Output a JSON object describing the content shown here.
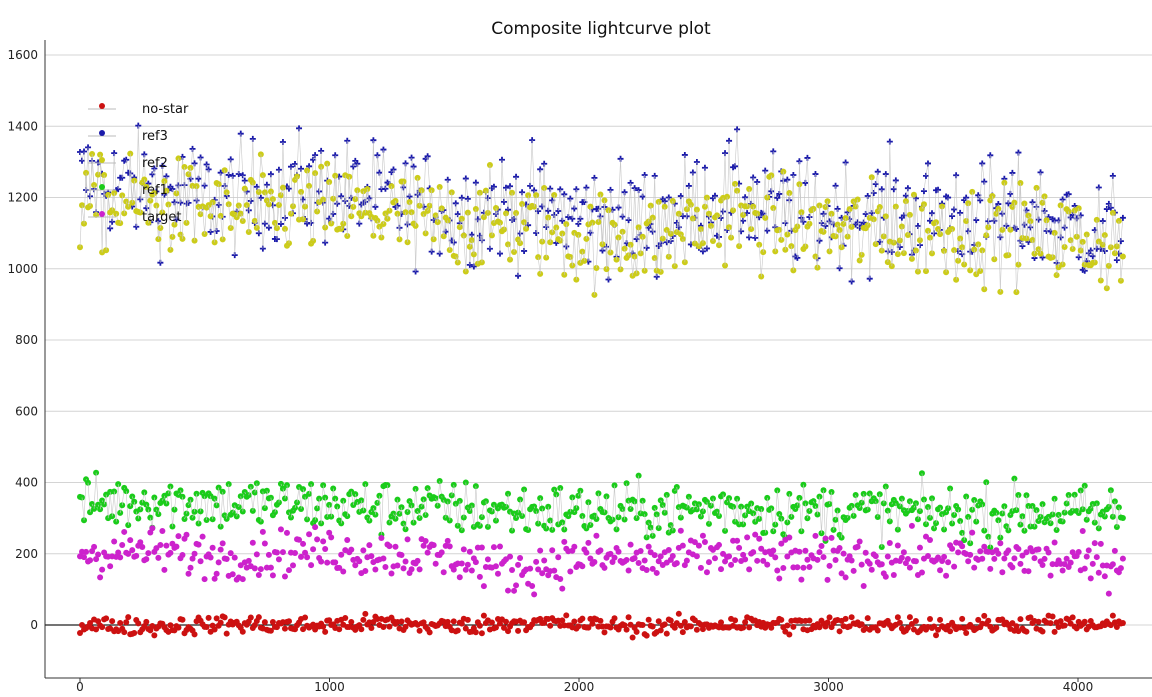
{
  "chart_data": {
    "type": "scatter",
    "title": "Composite lightcurve plot",
    "xlabel": "",
    "ylabel": "",
    "xlim": [
      -80,
      4230
    ],
    "ylim": [
      -140,
      1620
    ],
    "x_ticks": [
      0,
      1000,
      2000,
      3000,
      4000
    ],
    "x_tick_labels": [
      "0",
      "1000",
      "2000",
      "3000",
      "4000"
    ],
    "y_ticks": [
      0,
      200,
      400,
      600,
      800,
      1000,
      1200,
      1400,
      1600
    ],
    "y_tick_labels": [
      "0",
      "200",
      "400",
      "600",
      "800",
      "1000",
      "1200",
      "1400",
      "1600"
    ],
    "grid": true,
    "legend_position": "top-left",
    "legend": [
      "no-star",
      "ref3",
      "ref2",
      "ref1",
      "target"
    ],
    "series": [
      {
        "name": "no-star",
        "color": "#cc1111",
        "marker": "circle",
        "x": [
          0,
          300,
          600,
          900,
          1200,
          1500,
          1750,
          2000,
          2300,
          2600,
          2900,
          3200,
          3500,
          3800,
          4100,
          4180
        ],
        "y": [
          0,
          -5,
          3,
          -2,
          5,
          -4,
          8,
          2,
          -6,
          4,
          -1,
          3,
          -3,
          5,
          -2,
          0
        ]
      },
      {
        "name": "ref3",
        "color": "#1a1aaa",
        "marker": "plus",
        "x": [
          0,
          300,
          600,
          900,
          1200,
          1500,
          1750,
          2000,
          2300,
          2600,
          2900,
          3200,
          3500,
          3800,
          4100,
          4180
        ],
        "y": [
          1250,
          1220,
          1200,
          1230,
          1200,
          1170,
          1180,
          1150,
          1140,
          1210,
          1150,
          1160,
          1160,
          1150,
          1100,
          1120
        ]
      },
      {
        "name": "ref2",
        "color": "#cccc1a",
        "marker": "circle",
        "x": [
          0,
          300,
          600,
          900,
          1200,
          1500,
          1750,
          2000,
          2300,
          2600,
          2900,
          3200,
          3500,
          3800,
          4100,
          4180
        ],
        "y": [
          1180,
          1180,
          1150,
          1170,
          1150,
          1120,
          1130,
          1080,
          1080,
          1150,
          1110,
          1110,
          1100,
          1100,
          1070,
          1060
        ]
      },
      {
        "name": "ref1",
        "color": "#1acc1a",
        "marker": "circle",
        "x": [
          0,
          300,
          600,
          900,
          1200,
          1500,
          1750,
          2000,
          2300,
          2600,
          2900,
          3200,
          3500,
          3800,
          4100,
          4180
        ],
        "y": [
          340,
          350,
          340,
          340,
          330,
          330,
          320,
          320,
          320,
          330,
          320,
          320,
          310,
          320,
          310,
          320
        ]
      },
      {
        "name": "target",
        "color": "#cc22cc",
        "marker": "circle",
        "x": [
          0,
          300,
          600,
          900,
          1200,
          1500,
          1750,
          2000,
          2300,
          2600,
          2900,
          3200,
          3500,
          3800,
          4100,
          4180
        ],
        "y": [
          200,
          210,
          190,
          210,
          200,
          190,
          150,
          190,
          180,
          200,
          180,
          190,
          190,
          190,
          170,
          180
        ]
      }
    ]
  }
}
